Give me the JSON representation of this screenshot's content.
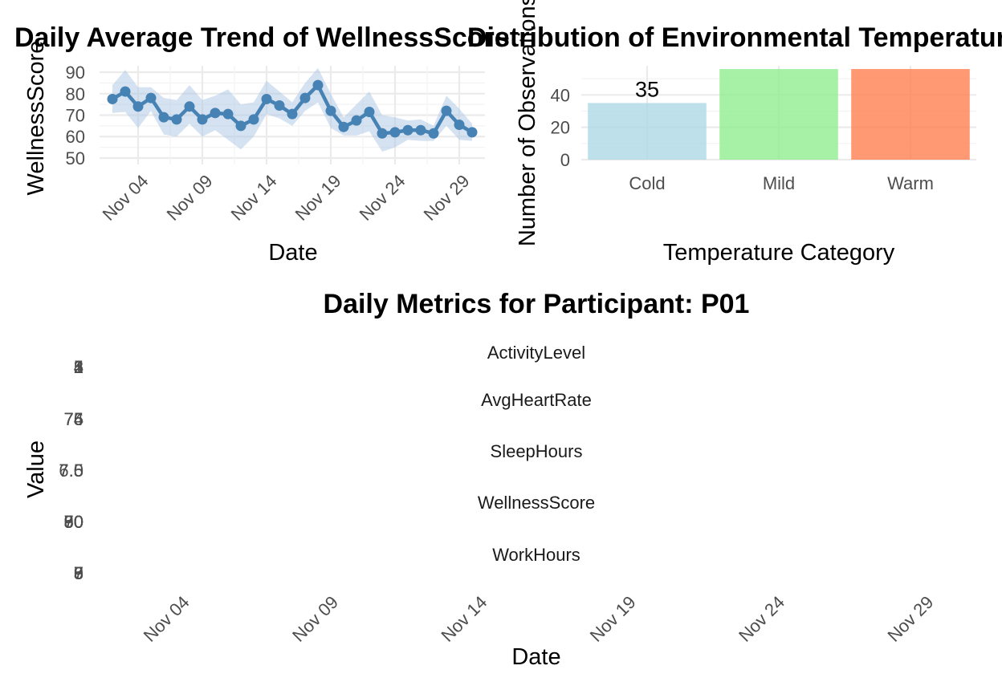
{
  "chart_data": [
    {
      "type": "line",
      "title": "Daily Average Trend of WellnessScore",
      "xlabel": "Date",
      "ylabel": "WellnessScore",
      "x_tick_labels": [
        "Nov 04",
        "Nov 09",
        "Nov 14",
        "Nov 19",
        "Nov 24",
        "Nov 29"
      ],
      "y_ticks": [
        50,
        60,
        70,
        80,
        90
      ],
      "ylim": [
        47,
        93
      ],
      "xlim": [
        "2023-11-01",
        "2023-12-01"
      ],
      "grid": true,
      "line_color": "#4682b4",
      "band_color": "#a9c6e3",
      "x": [
        "2023-11-02",
        "2023-11-03",
        "2023-11-04",
        "2023-11-05",
        "2023-11-06",
        "2023-11-07",
        "2023-11-08",
        "2023-11-09",
        "2023-11-10",
        "2023-11-11",
        "2023-11-12",
        "2023-11-13",
        "2023-11-14",
        "2023-11-15",
        "2023-11-16",
        "2023-11-17",
        "2023-11-18",
        "2023-11-19",
        "2023-11-20",
        "2023-11-21",
        "2023-11-22",
        "2023-11-23",
        "2023-11-24",
        "2023-11-25",
        "2023-11-26",
        "2023-11-27",
        "2023-11-28",
        "2023-11-29",
        "2023-11-30"
      ],
      "series": [
        {
          "values": [
            77.5,
            81,
            74,
            78,
            69,
            68,
            74,
            68,
            71,
            70.5,
            65,
            68,
            77.5,
            74.5,
            70.5,
            78,
            84,
            72,
            64.5,
            67.5,
            71.5,
            61.5,
            62,
            63,
            63,
            61.5,
            72,
            65.5,
            62
          ]
        }
      ],
      "band_low": [
        71,
        71.5,
        64,
        72,
        61,
        60,
        66,
        60,
        63,
        58.5,
        54,
        60,
        70.5,
        68.5,
        65,
        72,
        76,
        64,
        60.5,
        60.5,
        62.5,
        53,
        55,
        58.5,
        58,
        58,
        65,
        58.5,
        58
      ],
      "band_high": [
        84,
        91,
        83,
        83,
        78,
        77,
        84,
        77,
        79,
        82,
        75,
        76,
        86,
        81,
        76,
        85,
        92,
        80,
        69,
        75,
        81,
        70,
        69,
        67.5,
        68,
        65,
        79,
        73,
        66
      ]
    },
    {
      "type": "bar",
      "title": "Distribution of Environmental Temperature",
      "xlabel": "Temperature Category",
      "ylabel": "Number of Observations",
      "categories": [
        "Cold",
        "Mild",
        "Warm"
      ],
      "values": [
        35,
        56,
        56
      ],
      "colors": [
        "#add8e6",
        "#90ee90",
        "#ff7f50"
      ],
      "bar_labels": [
        "35",
        "",
        ""
      ],
      "y_ticks": [
        0,
        20,
        40
      ],
      "ylim": [
        0,
        58
      ],
      "grid": true
    },
    {
      "type": "line",
      "title": "Daily Metrics for Participant: P01",
      "xlabel": "Date",
      "ylabel": "Value",
      "x_tick_labels": [
        "Nov 04",
        "Nov 09",
        "Nov 14",
        "Nov 19",
        "Nov 24",
        "Nov 29"
      ],
      "xlim": [
        "2023-11-01",
        "2023-12-01"
      ],
      "facets": [
        {
          "name": "ActivityLevel",
          "y_tick_labels": [
            "5",
            "4",
            "3",
            "2",
            "1"
          ]
        },
        {
          "name": "AvgHeartRate",
          "y_tick_labels": [
            "76",
            "75",
            "74"
          ]
        },
        {
          "name": "SleepHours",
          "y_tick_labels": [
            "7.5",
            "7.0",
            "6.5"
          ]
        },
        {
          "name": "WellnessScore",
          "y_tick_labels": [
            "90",
            "80",
            "70",
            "60",
            "50"
          ]
        },
        {
          "name": "WorkHours",
          "y_tick_labels": [
            "9",
            "8",
            "7",
            "6",
            "5"
          ]
        }
      ],
      "series": []
    }
  ]
}
